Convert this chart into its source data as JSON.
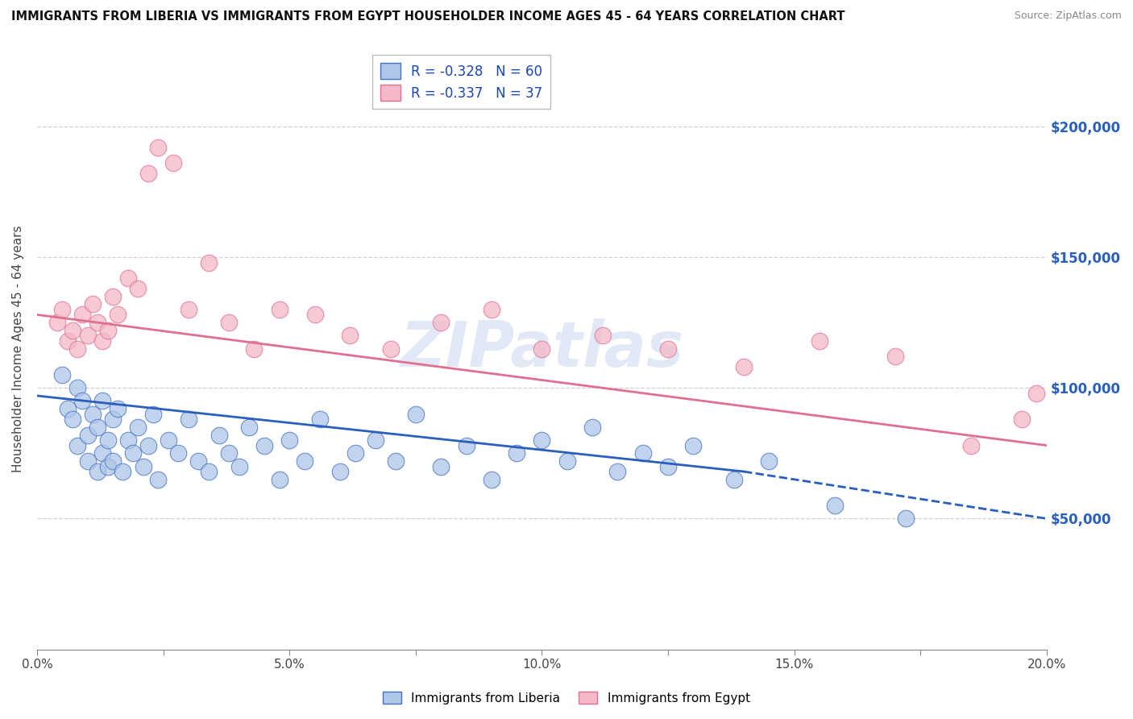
{
  "title": "IMMIGRANTS FROM LIBERIA VS IMMIGRANTS FROM EGYPT HOUSEHOLDER INCOME AGES 45 - 64 YEARS CORRELATION CHART",
  "source": "Source: ZipAtlas.com",
  "ylabel": "Householder Income Ages 45 - 64 years",
  "x_min": 0.0,
  "x_max": 0.2,
  "y_min": 0,
  "y_max": 230000,
  "y_ticks": [
    50000,
    100000,
    150000,
    200000
  ],
  "y_tick_labels": [
    "$50,000",
    "$100,000",
    "$150,000",
    "$200,000"
  ],
  "x_ticks": [
    0.0,
    0.025,
    0.05,
    0.075,
    0.1,
    0.125,
    0.15,
    0.175,
    0.2
  ],
  "x_tick_labels": [
    "0.0%",
    "",
    "5.0%",
    "",
    "10.0%",
    "",
    "15.0%",
    "",
    "20.0%"
  ],
  "liberia_R": -0.328,
  "liberia_N": 60,
  "egypt_R": -0.337,
  "egypt_N": 37,
  "liberia_color": "#aec6e8",
  "liberia_edge_color": "#4472c4",
  "liberia_line_color": "#2b5fbd",
  "egypt_color": "#f4b8c8",
  "egypt_edge_color": "#e07090",
  "egypt_line_color": "#e07090",
  "background_color": "#ffffff",
  "grid_color": "#cccccc",
  "legend_R_color": "#1a44bb",
  "liberia_line_solid_end": 0.14,
  "liberia_x": [
    0.005,
    0.006,
    0.007,
    0.008,
    0.008,
    0.009,
    0.01,
    0.01,
    0.011,
    0.012,
    0.012,
    0.013,
    0.013,
    0.014,
    0.014,
    0.015,
    0.015,
    0.016,
    0.017,
    0.018,
    0.019,
    0.02,
    0.021,
    0.022,
    0.023,
    0.024,
    0.026,
    0.028,
    0.03,
    0.032,
    0.034,
    0.036,
    0.038,
    0.04,
    0.042,
    0.045,
    0.048,
    0.05,
    0.053,
    0.056,
    0.06,
    0.063,
    0.067,
    0.071,
    0.075,
    0.08,
    0.085,
    0.09,
    0.095,
    0.1,
    0.105,
    0.11,
    0.115,
    0.12,
    0.125,
    0.13,
    0.138,
    0.145,
    0.158,
    0.172
  ],
  "liberia_y": [
    105000,
    92000,
    88000,
    100000,
    78000,
    95000,
    72000,
    82000,
    90000,
    68000,
    85000,
    75000,
    95000,
    80000,
    70000,
    88000,
    72000,
    92000,
    68000,
    80000,
    75000,
    85000,
    70000,
    78000,
    90000,
    65000,
    80000,
    75000,
    88000,
    72000,
    68000,
    82000,
    75000,
    70000,
    85000,
    78000,
    65000,
    80000,
    72000,
    88000,
    68000,
    75000,
    80000,
    72000,
    90000,
    70000,
    78000,
    65000,
    75000,
    80000,
    72000,
    85000,
    68000,
    75000,
    70000,
    78000,
    65000,
    72000,
    55000,
    50000
  ],
  "egypt_x": [
    0.004,
    0.005,
    0.006,
    0.007,
    0.008,
    0.009,
    0.01,
    0.011,
    0.012,
    0.013,
    0.014,
    0.015,
    0.016,
    0.018,
    0.02,
    0.022,
    0.024,
    0.027,
    0.03,
    0.034,
    0.038,
    0.043,
    0.048,
    0.055,
    0.062,
    0.07,
    0.08,
    0.09,
    0.1,
    0.112,
    0.125,
    0.14,
    0.155,
    0.17,
    0.185,
    0.195,
    0.198
  ],
  "egypt_y": [
    125000,
    130000,
    118000,
    122000,
    115000,
    128000,
    120000,
    132000,
    125000,
    118000,
    122000,
    135000,
    128000,
    142000,
    138000,
    182000,
    192000,
    186000,
    130000,
    148000,
    125000,
    115000,
    130000,
    128000,
    120000,
    115000,
    125000,
    130000,
    115000,
    120000,
    115000,
    108000,
    118000,
    112000,
    78000,
    88000,
    98000
  ]
}
